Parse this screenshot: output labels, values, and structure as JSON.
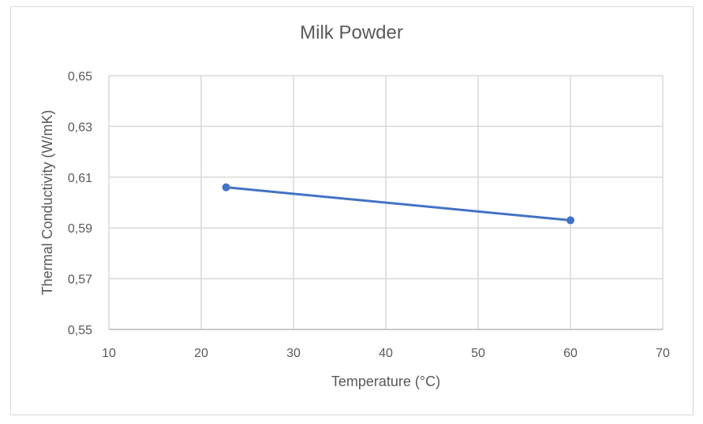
{
  "chart_data": {
    "type": "scatter",
    "title": "Milk Powder",
    "xlabel": "Temperature (°C)",
    "ylabel": "Thermal Conductivity (W/mK)",
    "xlim": [
      10,
      70
    ],
    "ylim": [
      0.55,
      0.65
    ],
    "x_ticks": [
      "10",
      "20",
      "30",
      "40",
      "50",
      "60",
      "70"
    ],
    "y_ticks": [
      "0,55",
      "0,57",
      "0,59",
      "0,61",
      "0,63",
      "0,65"
    ],
    "grid": true,
    "legend": "none",
    "series": [
      {
        "name": "Milk Powder",
        "color": "#4472c4",
        "mode": "lines+markers",
        "x": [
          22.7,
          60
        ],
        "y": [
          0.606,
          0.593
        ]
      }
    ]
  }
}
